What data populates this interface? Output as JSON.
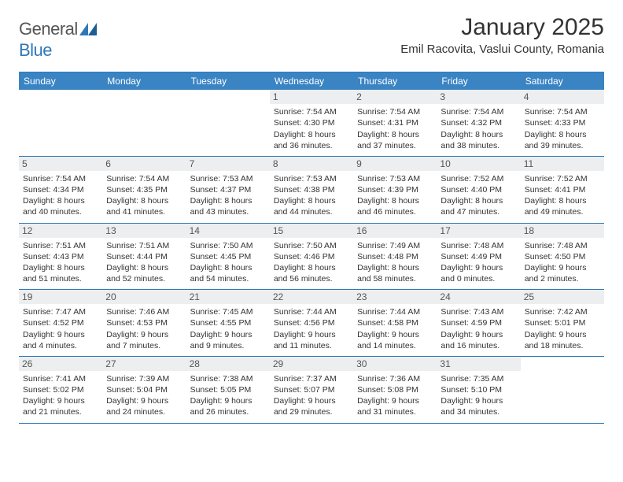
{
  "logo": {
    "word1": "General",
    "word2": "Blue"
  },
  "title": "January 2025",
  "subtitle": "Emil Racovita, Vaslui County, Romania",
  "colors": {
    "header_bg": "#3a84c4",
    "border": "#2f78b8",
    "daynum_bg": "#eceeef",
    "text": "#333333"
  },
  "weekdays": [
    "Sunday",
    "Monday",
    "Tuesday",
    "Wednesday",
    "Thursday",
    "Friday",
    "Saturday"
  ],
  "weeks": [
    [
      {
        "n": "",
        "lines": []
      },
      {
        "n": "",
        "lines": []
      },
      {
        "n": "",
        "lines": []
      },
      {
        "n": "1",
        "lines": [
          "Sunrise: 7:54 AM",
          "Sunset: 4:30 PM",
          "Daylight: 8 hours",
          "and 36 minutes."
        ]
      },
      {
        "n": "2",
        "lines": [
          "Sunrise: 7:54 AM",
          "Sunset: 4:31 PM",
          "Daylight: 8 hours",
          "and 37 minutes."
        ]
      },
      {
        "n": "3",
        "lines": [
          "Sunrise: 7:54 AM",
          "Sunset: 4:32 PM",
          "Daylight: 8 hours",
          "and 38 minutes."
        ]
      },
      {
        "n": "4",
        "lines": [
          "Sunrise: 7:54 AM",
          "Sunset: 4:33 PM",
          "Daylight: 8 hours",
          "and 39 minutes."
        ]
      }
    ],
    [
      {
        "n": "5",
        "lines": [
          "Sunrise: 7:54 AM",
          "Sunset: 4:34 PM",
          "Daylight: 8 hours",
          "and 40 minutes."
        ]
      },
      {
        "n": "6",
        "lines": [
          "Sunrise: 7:54 AM",
          "Sunset: 4:35 PM",
          "Daylight: 8 hours",
          "and 41 minutes."
        ]
      },
      {
        "n": "7",
        "lines": [
          "Sunrise: 7:53 AM",
          "Sunset: 4:37 PM",
          "Daylight: 8 hours",
          "and 43 minutes."
        ]
      },
      {
        "n": "8",
        "lines": [
          "Sunrise: 7:53 AM",
          "Sunset: 4:38 PM",
          "Daylight: 8 hours",
          "and 44 minutes."
        ]
      },
      {
        "n": "9",
        "lines": [
          "Sunrise: 7:53 AM",
          "Sunset: 4:39 PM",
          "Daylight: 8 hours",
          "and 46 minutes."
        ]
      },
      {
        "n": "10",
        "lines": [
          "Sunrise: 7:52 AM",
          "Sunset: 4:40 PM",
          "Daylight: 8 hours",
          "and 47 minutes."
        ]
      },
      {
        "n": "11",
        "lines": [
          "Sunrise: 7:52 AM",
          "Sunset: 4:41 PM",
          "Daylight: 8 hours",
          "and 49 minutes."
        ]
      }
    ],
    [
      {
        "n": "12",
        "lines": [
          "Sunrise: 7:51 AM",
          "Sunset: 4:43 PM",
          "Daylight: 8 hours",
          "and 51 minutes."
        ]
      },
      {
        "n": "13",
        "lines": [
          "Sunrise: 7:51 AM",
          "Sunset: 4:44 PM",
          "Daylight: 8 hours",
          "and 52 minutes."
        ]
      },
      {
        "n": "14",
        "lines": [
          "Sunrise: 7:50 AM",
          "Sunset: 4:45 PM",
          "Daylight: 8 hours",
          "and 54 minutes."
        ]
      },
      {
        "n": "15",
        "lines": [
          "Sunrise: 7:50 AM",
          "Sunset: 4:46 PM",
          "Daylight: 8 hours",
          "and 56 minutes."
        ]
      },
      {
        "n": "16",
        "lines": [
          "Sunrise: 7:49 AM",
          "Sunset: 4:48 PM",
          "Daylight: 8 hours",
          "and 58 minutes."
        ]
      },
      {
        "n": "17",
        "lines": [
          "Sunrise: 7:48 AM",
          "Sunset: 4:49 PM",
          "Daylight: 9 hours",
          "and 0 minutes."
        ]
      },
      {
        "n": "18",
        "lines": [
          "Sunrise: 7:48 AM",
          "Sunset: 4:50 PM",
          "Daylight: 9 hours",
          "and 2 minutes."
        ]
      }
    ],
    [
      {
        "n": "19",
        "lines": [
          "Sunrise: 7:47 AM",
          "Sunset: 4:52 PM",
          "Daylight: 9 hours",
          "and 4 minutes."
        ]
      },
      {
        "n": "20",
        "lines": [
          "Sunrise: 7:46 AM",
          "Sunset: 4:53 PM",
          "Daylight: 9 hours",
          "and 7 minutes."
        ]
      },
      {
        "n": "21",
        "lines": [
          "Sunrise: 7:45 AM",
          "Sunset: 4:55 PM",
          "Daylight: 9 hours",
          "and 9 minutes."
        ]
      },
      {
        "n": "22",
        "lines": [
          "Sunrise: 7:44 AM",
          "Sunset: 4:56 PM",
          "Daylight: 9 hours",
          "and 11 minutes."
        ]
      },
      {
        "n": "23",
        "lines": [
          "Sunrise: 7:44 AM",
          "Sunset: 4:58 PM",
          "Daylight: 9 hours",
          "and 14 minutes."
        ]
      },
      {
        "n": "24",
        "lines": [
          "Sunrise: 7:43 AM",
          "Sunset: 4:59 PM",
          "Daylight: 9 hours",
          "and 16 minutes."
        ]
      },
      {
        "n": "25",
        "lines": [
          "Sunrise: 7:42 AM",
          "Sunset: 5:01 PM",
          "Daylight: 9 hours",
          "and 18 minutes."
        ]
      }
    ],
    [
      {
        "n": "26",
        "lines": [
          "Sunrise: 7:41 AM",
          "Sunset: 5:02 PM",
          "Daylight: 9 hours",
          "and 21 minutes."
        ]
      },
      {
        "n": "27",
        "lines": [
          "Sunrise: 7:39 AM",
          "Sunset: 5:04 PM",
          "Daylight: 9 hours",
          "and 24 minutes."
        ]
      },
      {
        "n": "28",
        "lines": [
          "Sunrise: 7:38 AM",
          "Sunset: 5:05 PM",
          "Daylight: 9 hours",
          "and 26 minutes."
        ]
      },
      {
        "n": "29",
        "lines": [
          "Sunrise: 7:37 AM",
          "Sunset: 5:07 PM",
          "Daylight: 9 hours",
          "and 29 minutes."
        ]
      },
      {
        "n": "30",
        "lines": [
          "Sunrise: 7:36 AM",
          "Sunset: 5:08 PM",
          "Daylight: 9 hours",
          "and 31 minutes."
        ]
      },
      {
        "n": "31",
        "lines": [
          "Sunrise: 7:35 AM",
          "Sunset: 5:10 PM",
          "Daylight: 9 hours",
          "and 34 minutes."
        ]
      },
      {
        "n": "",
        "lines": []
      }
    ]
  ]
}
